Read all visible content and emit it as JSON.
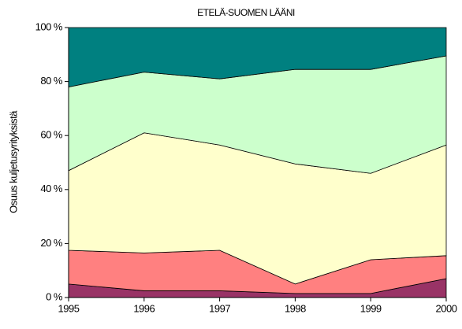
{
  "chart_data": {
    "type": "stacked_area",
    "title": "ETELÄ-SUOMEN LÄÄNI",
    "y_label": "Osuus kuljetusyrityksistä",
    "x": [
      1995,
      1996,
      1997,
      1998,
      1999,
      2000
    ],
    "series": [
      {
        "color": "#993366",
        "values": [
          5,
          2.5,
          2.5,
          1.5,
          1.5,
          7
        ]
      },
      {
        "color": "#ff8080",
        "values": [
          12.5,
          14,
          15,
          3.5,
          12.5,
          8.5
        ]
      },
      {
        "color": "#ffffcc",
        "values": [
          29.5,
          44.5,
          39,
          44.5,
          32,
          41
        ]
      },
      {
        "color": "#ccffcc",
        "values": [
          31,
          22.5,
          24.5,
          35,
          38.5,
          33
        ]
      },
      {
        "color": "#008080",
        "values": [
          22,
          16.5,
          19,
          15.5,
          15.5,
          10.5
        ]
      }
    ],
    "xlim": [
      1995,
      2000
    ],
    "xticks": [
      1995,
      1996,
      1997,
      1998,
      1999,
      2000
    ],
    "ylim": [
      0,
      100
    ],
    "yticks": [
      {
        "value": 0,
        "label": "0 %"
      },
      {
        "value": 20,
        "label": "20 %"
      },
      {
        "value": 40,
        "label": "40 %"
      },
      {
        "value": 60,
        "label": "60 %"
      },
      {
        "value": 80,
        "label": "80 %"
      },
      {
        "value": 100,
        "label": "100 %"
      }
    ],
    "grid": false
  }
}
